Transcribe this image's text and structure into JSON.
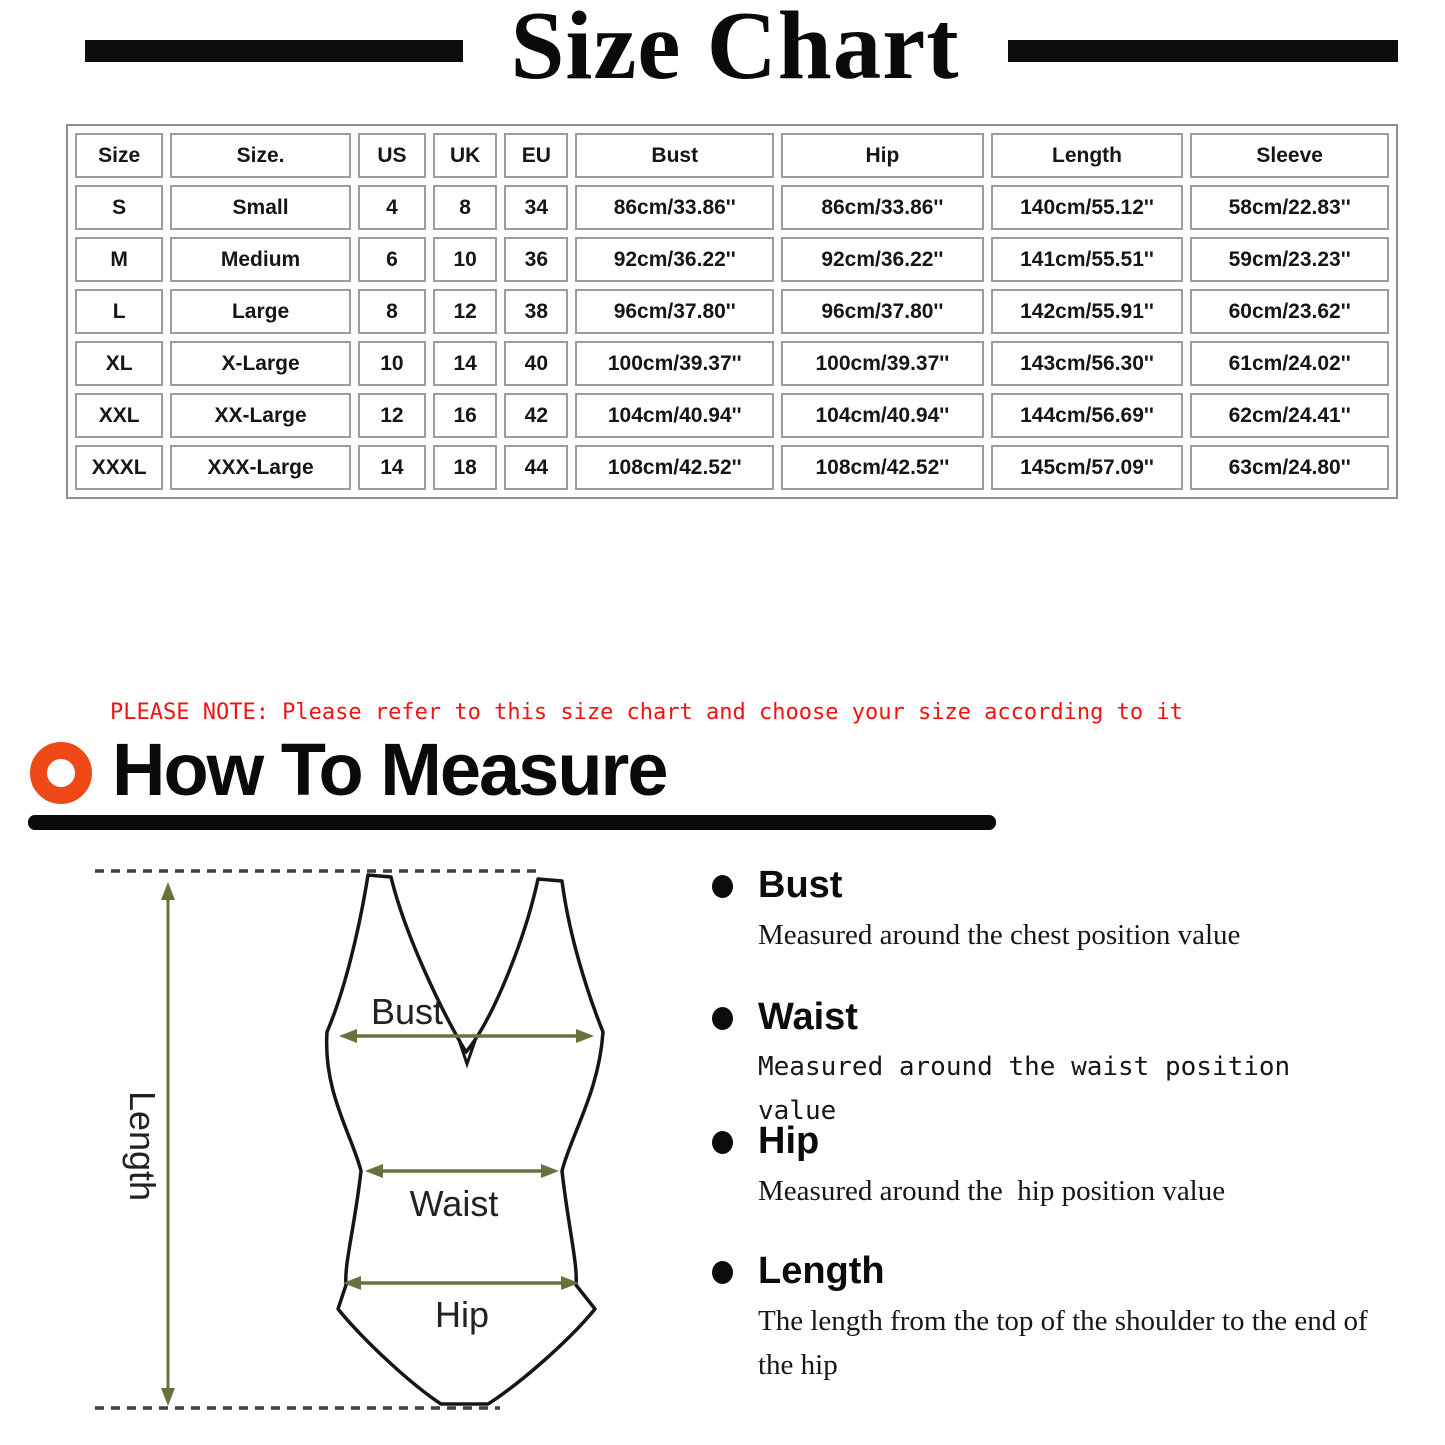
{
  "title": "Size Chart",
  "size_table": {
    "columns": [
      "Size",
      "Size.",
      "US",
      "UK",
      "EU",
      "Bust",
      "Hip",
      "Length",
      "Sleeve"
    ],
    "rows": [
      [
        "S",
        "Small",
        "4",
        "8",
        "34",
        "86cm/33.86''",
        "86cm/33.86''",
        "140cm/55.12''",
        "58cm/22.83''"
      ],
      [
        "M",
        "Medium",
        "6",
        "10",
        "36",
        "92cm/36.22''",
        "92cm/36.22''",
        "141cm/55.51''",
        "59cm/23.23''"
      ],
      [
        "L",
        "Large",
        "8",
        "12",
        "38",
        "96cm/37.80''",
        "96cm/37.80''",
        "142cm/55.91''",
        "60cm/23.62''"
      ],
      [
        "XL",
        "X-Large",
        "10",
        "14",
        "40",
        "100cm/39.37''",
        "100cm/39.37''",
        "143cm/56.30''",
        "61cm/24.02''"
      ],
      [
        "XXL",
        "XX-Large",
        "12",
        "16",
        "42",
        "104cm/40.94''",
        "104cm/40.94''",
        "144cm/56.69''",
        "62cm/24.41''"
      ],
      [
        "XXXL",
        "XXX-Large",
        "14",
        "18",
        "44",
        "108cm/42.52''",
        "108cm/42.52''",
        "145cm/57.09''",
        "63cm/24.80''"
      ]
    ]
  },
  "note": "PLEASE NOTE: Please refer to this size chart and choose your size according to it",
  "measure_section": {
    "heading": "How To Measure",
    "items": [
      {
        "label": "Bust",
        "desc": "Measured around the chest position value"
      },
      {
        "label": "Waist",
        "desc": "Measured around the waist position value"
      },
      {
        "label": "Hip",
        "desc": "Measured around the  hip position value"
      },
      {
        "label": "Length",
        "desc": "The length from the top of the shoulder to the end of the hip"
      }
    ]
  },
  "diagram": {
    "labels": {
      "bust": "Bust",
      "waist": "Waist",
      "hip": "Hip",
      "length": "Length"
    }
  },
  "colors": {
    "accent_orange": "#ee4916",
    "note_red": "#f31111",
    "arrow_olive": "#6b713d",
    "outline_black": "#111111"
  }
}
